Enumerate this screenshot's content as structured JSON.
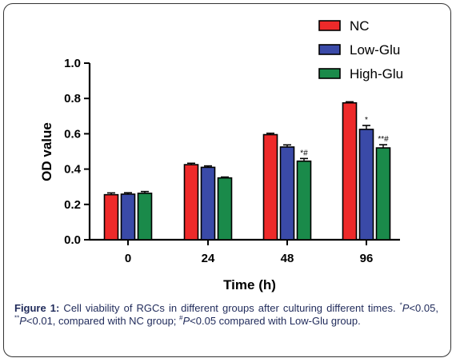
{
  "chart_data": {
    "type": "bar",
    "categories": [
      "0",
      "24",
      "48",
      "96"
    ],
    "xlabel": "Time (h)",
    "ylabel": "OD value",
    "ylim": [
      0,
      1.0
    ],
    "yticks": [
      "0.0",
      "0.2",
      "0.4",
      "0.6",
      "0.8",
      "1.0"
    ],
    "legend_position": "top-right",
    "series": [
      {
        "name": "NC",
        "color": "#ee2a2a",
        "values": [
          0.255,
          0.425,
          0.595,
          0.775
        ],
        "errors": [
          0.01,
          0.008,
          0.008,
          0.006
        ],
        "marks": [
          "",
          "",
          "",
          ""
        ]
      },
      {
        "name": "Low-Glu",
        "color": "#3a4aa8",
        "values": [
          0.258,
          0.41,
          0.525,
          0.625
        ],
        "errors": [
          0.008,
          0.008,
          0.012,
          0.022
        ],
        "marks": [
          "",
          "",
          "",
          "*"
        ]
      },
      {
        "name": "High-Glu",
        "color": "#1a8a4a",
        "values": [
          0.263,
          0.35,
          0.445,
          0.52
        ],
        "errors": [
          0.01,
          0.005,
          0.015,
          0.018
        ],
        "marks": [
          "",
          "",
          "*#",
          "**#"
        ]
      }
    ]
  },
  "caption": {
    "label": "Figure 1:",
    "text1": " Cell viability of RGCs in different groups after culturing different times. ",
    "sup1": "*",
    "p1": "P",
    "t1": "<0.05, ",
    "sup2": "**",
    "p2": "P",
    "t2": "<0.01, compared with NC group; ",
    "sup3": "#",
    "p3": "P",
    "t3": "<0.05 compared with Low-Glu group."
  }
}
